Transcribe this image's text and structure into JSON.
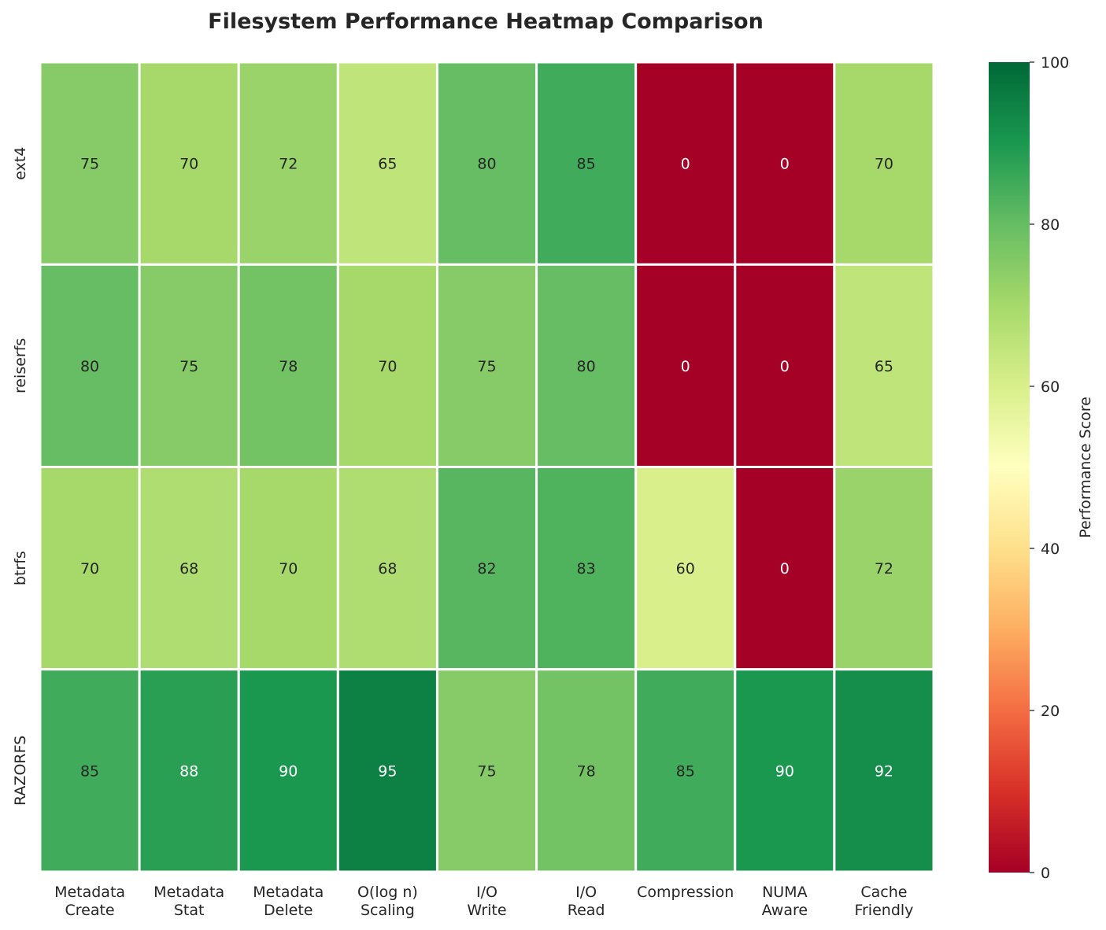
{
  "chart_data": {
    "type": "heatmap",
    "title": "Filesystem Performance Heatmap Comparison",
    "rows": [
      "ext4",
      "reiserfs",
      "btrfs",
      "RAZORFS"
    ],
    "columns": [
      [
        "Metadata",
        "Create"
      ],
      [
        "Metadata",
        "Stat"
      ],
      [
        "Metadata",
        "Delete"
      ],
      [
        "O(log n)",
        "Scaling"
      ],
      [
        "I/O",
        "Write"
      ],
      [
        "I/O",
        "Read"
      ],
      [
        "Compression"
      ],
      [
        "NUMA",
        "Aware"
      ],
      [
        "Cache",
        "Friendly"
      ]
    ],
    "values": [
      [
        75,
        70,
        72,
        65,
        80,
        85,
        0,
        0,
        70
      ],
      [
        80,
        75,
        78,
        70,
        75,
        80,
        0,
        0,
        65
      ],
      [
        70,
        68,
        70,
        68,
        82,
        83,
        60,
        0,
        72
      ],
      [
        85,
        88,
        90,
        95,
        75,
        78,
        85,
        90,
        92
      ]
    ],
    "colormap": "RdYlGn",
    "vmin": 0,
    "vmax": 100,
    "colorbar": {
      "label": "Performance Score",
      "ticks": [
        0,
        20,
        40,
        60,
        80,
        100
      ]
    }
  }
}
